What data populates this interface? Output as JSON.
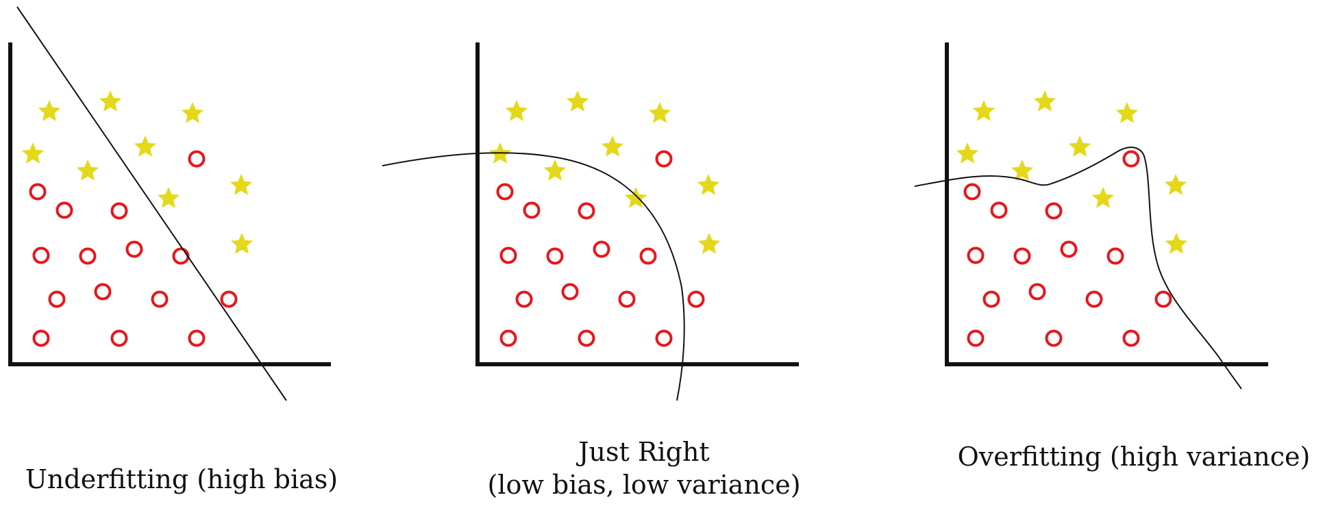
{
  "colors": {
    "axis": "#111111",
    "boundary": "#111111",
    "star": "#e4d81a",
    "circle": "#e8161b"
  },
  "icons": {
    "star": "star-icon",
    "circle": "circle-icon"
  },
  "panels": [
    {
      "id": "underfitting",
      "caption": [
        "Underfitting (high bias)"
      ],
      "boundary": "straight-line"
    },
    {
      "id": "just-right",
      "caption": [
        "Just Right",
        "(low bias, low variance)"
      ],
      "boundary": "smooth-curve"
    },
    {
      "id": "overfitting",
      "caption": [
        "Overfitting (high variance)"
      ],
      "boundary": "wiggly-curve"
    }
  ]
}
